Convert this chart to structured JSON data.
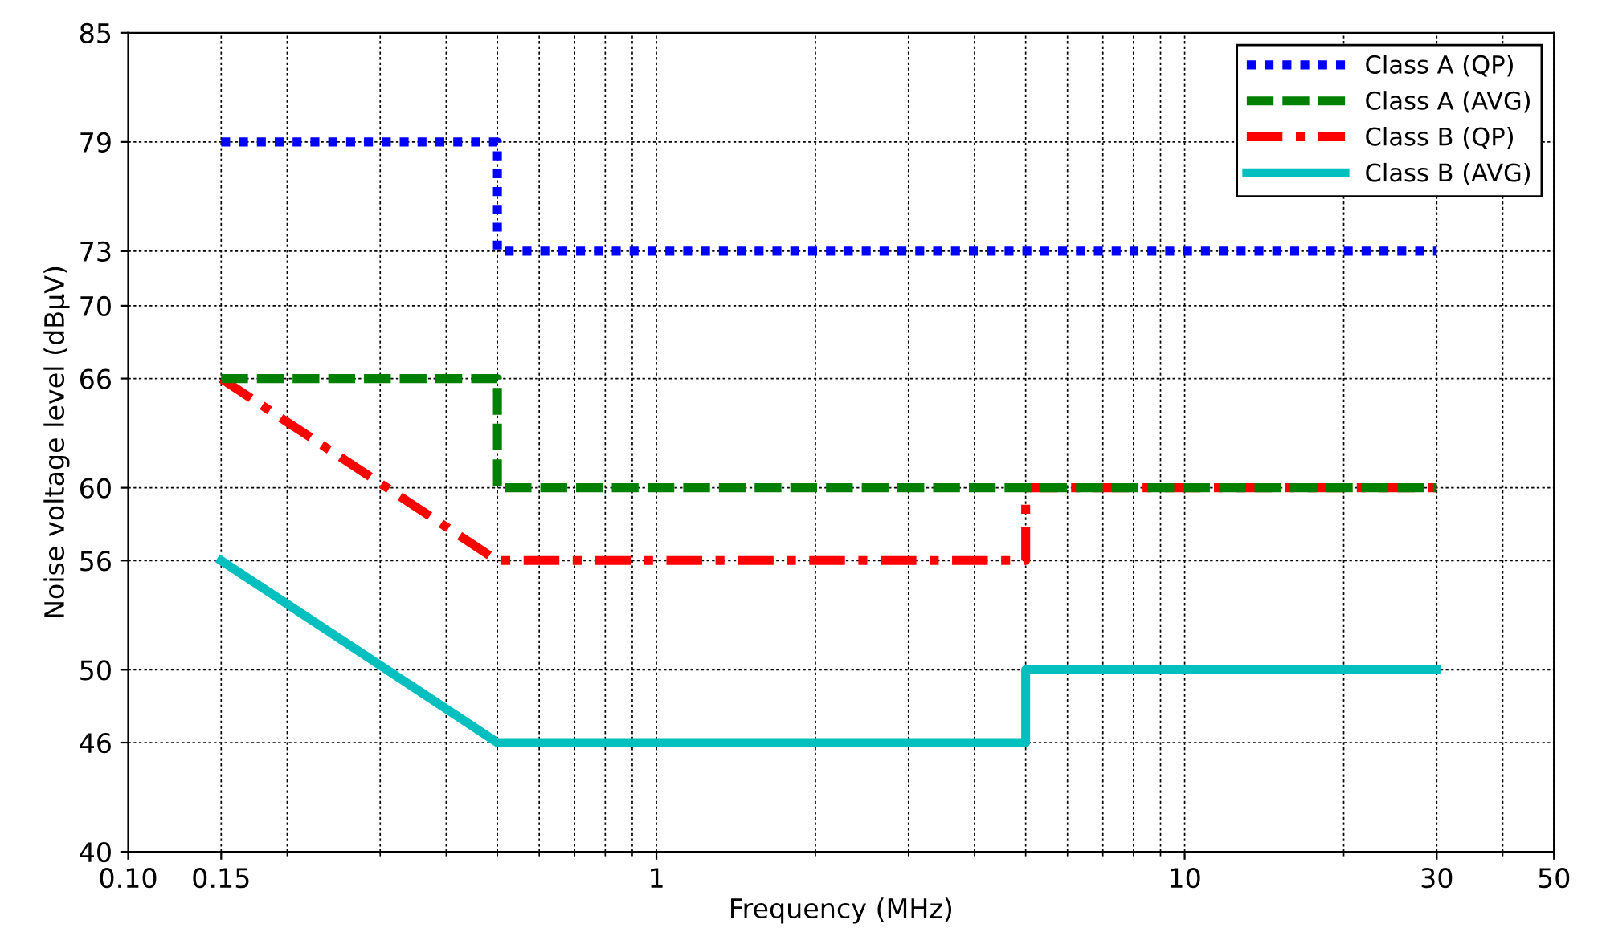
{
  "chart_data": {
    "type": "line",
    "xlabel": "Frequency (MHz)",
    "ylabel": "Noise voltage level (dBμV)",
    "log": "x",
    "xlim": [
      0.1,
      50
    ],
    "ylim": [
      40,
      85
    ],
    "xticks": [
      {
        "value": 0.1,
        "label": "0.10"
      },
      0.15,
      1,
      10,
      30,
      50
    ],
    "yticks": [
      40,
      46,
      50,
      56,
      60,
      66,
      70,
      73,
      79,
      85
    ],
    "grid": true,
    "legend": "top right",
    "series": [
      {
        "name": "Class A (QP)",
        "color": "#0000ff",
        "line_style": "dotted",
        "x": [
          0.15,
          0.5,
          0.5,
          30
        ],
        "values": [
          79,
          79,
          73,
          73
        ]
      },
      {
        "name": "Class A (AVG)",
        "color": "#008000",
        "line_style": "dashed",
        "x": [
          0.15,
          0.5,
          0.5,
          30
        ],
        "values": [
          66,
          66,
          60,
          60
        ]
      },
      {
        "name": "Class B (QP)",
        "color": "#ff0000",
        "line_style": "dashdot",
        "x": [
          0.15,
          0.5,
          5,
          5,
          30
        ],
        "values": [
          66,
          56,
          56,
          60,
          60
        ]
      },
      {
        "name": "Class B (AVG)",
        "color": "#00bfbf",
        "line_style": "solid",
        "x": [
          0.15,
          0.5,
          5,
          5,
          30
        ],
        "values": [
          56,
          46,
          46,
          50,
          50
        ]
      }
    ]
  }
}
